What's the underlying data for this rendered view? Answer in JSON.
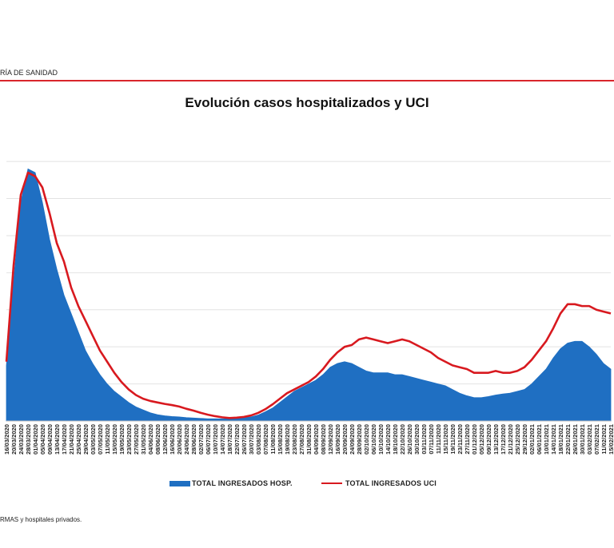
{
  "header": {
    "source_text": "RÍA DE SANIDAD",
    "rule_color": "#d9252b"
  },
  "footnote": "RMAS y hospitales privados.",
  "colors": {
    "hosp": "#1f6fc2",
    "uci": "#d8191f",
    "grid": "#e2e2e2"
  },
  "chart_data": {
    "type": "area",
    "title": "Evolución casos hospitalizados y UCI",
    "xlabel": "",
    "ylabel": "",
    "grid": true,
    "legend_position": "bottom",
    "x_tick_labels": [
      "16/03/2020",
      "20/03/2020",
      "24/03/2020",
      "28/03/2020",
      "01/04/2020",
      "05/04/2020",
      "09/04/2020",
      "13/04/2020",
      "17/04/2020",
      "21/04/2020",
      "25/04/2020",
      "29/04/2020",
      "03/05/2020",
      "07/05/2020",
      "11/05/2020",
      "15/05/2020",
      "19/05/2020",
      "23/05/2020",
      "27/05/2020",
      "31/05/2020",
      "04/06/2020",
      "08/06/2020",
      "12/06/2020",
      "16/06/2020",
      "20/06/2020",
      "24/06/2020",
      "28/06/2020",
      "02/07/2020",
      "06/07/2020",
      "10/07/2020",
      "14/07/2020",
      "18/07/2020",
      "22/07/2020",
      "26/07/2020",
      "30/07/2020",
      "03/08/2020",
      "07/08/2020",
      "11/08/2020",
      "15/08/2020",
      "19/08/2020",
      "23/08/2020",
      "27/08/2020",
      "31/08/2020",
      "04/09/2020",
      "08/09/2020",
      "12/09/2020",
      "16/09/2020",
      "20/09/2020",
      "24/09/2020",
      "28/09/2020",
      "02/10/2020",
      "06/10/2020",
      "10/10/2020",
      "14/10/2020",
      "18/10/2020",
      "22/10/2020",
      "26/10/2020",
      "30/10/2020",
      "03/11/2020",
      "07/11/2020",
      "11/11/2020",
      "15/11/2020",
      "19/11/2020",
      "23/11/2020",
      "27/11/2020",
      "01/12/2020",
      "05/12/2020",
      "09/12/2020",
      "13/12/2020",
      "17/12/2020",
      "21/12/2020",
      "25/12/2020",
      "29/12/2020",
      "02/01/2021",
      "06/01/2021",
      "10/01/2021",
      "14/01/2021",
      "18/01/2021",
      "22/01/2021",
      "26/01/2021",
      "30/01/2021",
      "03/02/2021",
      "07/02/2021",
      "11/02/2021",
      "15/02/2021"
    ],
    "y_range": [
      0,
      78
    ],
    "series": [
      {
        "name": "TOTAL INGRESADOS HOSP.",
        "kind": "area",
        "points": [
          [
            "2020-03-16",
            15
          ],
          [
            "2020-03-20",
            38
          ],
          [
            "2020-03-24",
            59
          ],
          [
            "2020-03-28",
            68
          ],
          [
            "2020-04-01",
            67
          ],
          [
            "2020-04-05",
            59
          ],
          [
            "2020-04-09",
            49
          ],
          [
            "2020-04-13",
            41
          ],
          [
            "2020-04-17",
            34
          ],
          [
            "2020-04-21",
            29
          ],
          [
            "2020-04-25",
            24
          ],
          [
            "2020-04-29",
            19
          ],
          [
            "2020-05-03",
            15.5
          ],
          [
            "2020-05-07",
            12.5
          ],
          [
            "2020-05-11",
            10
          ],
          [
            "2020-05-15",
            8
          ],
          [
            "2020-05-19",
            6.5
          ],
          [
            "2020-05-23",
            5
          ],
          [
            "2020-05-27",
            3.8
          ],
          [
            "2020-05-31",
            3
          ],
          [
            "2020-06-04",
            2.2
          ],
          [
            "2020-06-08",
            1.7
          ],
          [
            "2020-06-12",
            1.4
          ],
          [
            "2020-06-16",
            1.2
          ],
          [
            "2020-06-20",
            1.1
          ],
          [
            "2020-06-24",
            0.9
          ],
          [
            "2020-06-28",
            0.8
          ],
          [
            "2020-07-02",
            0.7
          ],
          [
            "2020-07-06",
            0.6
          ],
          [
            "2020-07-10",
            0.6
          ],
          [
            "2020-07-14",
            0.6
          ],
          [
            "2020-07-18",
            0.6
          ],
          [
            "2020-07-22",
            0.7
          ],
          [
            "2020-07-26",
            0.9
          ],
          [
            "2020-07-30",
            1.1
          ],
          [
            "2020-08-03",
            1.6
          ],
          [
            "2020-08-07",
            2.5
          ],
          [
            "2020-08-11",
            3.5
          ],
          [
            "2020-08-15",
            5
          ],
          [
            "2020-08-19",
            6.5
          ],
          [
            "2020-08-23",
            8
          ],
          [
            "2020-08-27",
            9
          ],
          [
            "2020-08-31",
            10
          ],
          [
            "2020-09-04",
            11
          ],
          [
            "2020-09-08",
            12.5
          ],
          [
            "2020-09-12",
            14.5
          ],
          [
            "2020-09-16",
            15.5
          ],
          [
            "2020-09-20",
            16
          ],
          [
            "2020-09-24",
            15.5
          ],
          [
            "2020-09-28",
            14.5
          ],
          [
            "2020-10-02",
            13.5
          ],
          [
            "2020-10-06",
            13
          ],
          [
            "2020-10-10",
            13
          ],
          [
            "2020-10-14",
            13
          ],
          [
            "2020-10-18",
            12.5
          ],
          [
            "2020-10-22",
            12.5
          ],
          [
            "2020-10-26",
            12
          ],
          [
            "2020-10-30",
            11.5
          ],
          [
            "2020-11-03",
            11
          ],
          [
            "2020-11-07",
            10.5
          ],
          [
            "2020-11-11",
            10
          ],
          [
            "2020-11-15",
            9.5
          ],
          [
            "2020-11-19",
            8.5
          ],
          [
            "2020-11-23",
            7.5
          ],
          [
            "2020-11-27",
            6.8
          ],
          [
            "2020-12-01",
            6.3
          ],
          [
            "2020-12-05",
            6.3
          ],
          [
            "2020-12-09",
            6.6
          ],
          [
            "2020-12-13",
            7
          ],
          [
            "2020-12-17",
            7.3
          ],
          [
            "2020-12-21",
            7.5
          ],
          [
            "2020-12-25",
            8
          ],
          [
            "2020-12-29",
            8.5
          ],
          [
            "2021-01-02",
            10
          ],
          [
            "2021-01-06",
            12
          ],
          [
            "2021-01-10",
            14
          ],
          [
            "2021-01-14",
            17
          ],
          [
            "2021-01-18",
            19.5
          ],
          [
            "2021-01-22",
            21
          ],
          [
            "2021-01-26",
            21.5
          ],
          [
            "2021-01-30",
            21.5
          ],
          [
            "2021-02-03",
            20
          ],
          [
            "2021-02-07",
            18
          ],
          [
            "2021-02-11",
            15.5
          ],
          [
            "2021-02-15",
            14
          ]
        ]
      },
      {
        "name": "TOTAL INGRESADOS UCI",
        "kind": "line",
        "points": [
          [
            "2020-03-16",
            16
          ],
          [
            "2020-03-20",
            42
          ],
          [
            "2020-03-24",
            61
          ],
          [
            "2020-03-28",
            67
          ],
          [
            "2020-04-01",
            66
          ],
          [
            "2020-04-05",
            63
          ],
          [
            "2020-04-09",
            56
          ],
          [
            "2020-04-13",
            48
          ],
          [
            "2020-04-17",
            43
          ],
          [
            "2020-04-21",
            36
          ],
          [
            "2020-04-25",
            31
          ],
          [
            "2020-04-29",
            27
          ],
          [
            "2020-05-03",
            23
          ],
          [
            "2020-05-07",
            19
          ],
          [
            "2020-05-11",
            16
          ],
          [
            "2020-05-15",
            13
          ],
          [
            "2020-05-19",
            10.5
          ],
          [
            "2020-05-23",
            8.5
          ],
          [
            "2020-05-27",
            7
          ],
          [
            "2020-05-31",
            6
          ],
          [
            "2020-06-04",
            5.4
          ],
          [
            "2020-06-08",
            5
          ],
          [
            "2020-06-12",
            4.6
          ],
          [
            "2020-06-16",
            4.3
          ],
          [
            "2020-06-20",
            3.9
          ],
          [
            "2020-06-24",
            3.3
          ],
          [
            "2020-06-28",
            2.8
          ],
          [
            "2020-07-02",
            2.2
          ],
          [
            "2020-07-06",
            1.7
          ],
          [
            "2020-07-10",
            1.3
          ],
          [
            "2020-07-14",
            1
          ],
          [
            "2020-07-18",
            0.8
          ],
          [
            "2020-07-22",
            0.9
          ],
          [
            "2020-07-26",
            1.1
          ],
          [
            "2020-07-30",
            1.5
          ],
          [
            "2020-08-03",
            2.2
          ],
          [
            "2020-08-07",
            3.2
          ],
          [
            "2020-08-11",
            4.5
          ],
          [
            "2020-08-15",
            6
          ],
          [
            "2020-08-19",
            7.5
          ],
          [
            "2020-08-23",
            8.5
          ],
          [
            "2020-08-27",
            9.5
          ],
          [
            "2020-08-31",
            10.5
          ],
          [
            "2020-09-04",
            12
          ],
          [
            "2020-09-08",
            14
          ],
          [
            "2020-09-12",
            16.5
          ],
          [
            "2020-09-16",
            18.5
          ],
          [
            "2020-09-20",
            20
          ],
          [
            "2020-09-24",
            20.5
          ],
          [
            "2020-09-28",
            22
          ],
          [
            "2020-10-02",
            22.5
          ],
          [
            "2020-10-06",
            22
          ],
          [
            "2020-10-10",
            21.5
          ],
          [
            "2020-10-14",
            21
          ],
          [
            "2020-10-18",
            21.5
          ],
          [
            "2020-10-22",
            22
          ],
          [
            "2020-10-26",
            21.5
          ],
          [
            "2020-10-30",
            20.5
          ],
          [
            "2020-11-03",
            19.5
          ],
          [
            "2020-11-07",
            18.5
          ],
          [
            "2020-11-11",
            17
          ],
          [
            "2020-11-15",
            16
          ],
          [
            "2020-11-19",
            15
          ],
          [
            "2020-11-23",
            14.5
          ],
          [
            "2020-11-27",
            14
          ],
          [
            "2020-12-01",
            13
          ],
          [
            "2020-12-05",
            13
          ],
          [
            "2020-12-09",
            13
          ],
          [
            "2020-12-13",
            13.5
          ],
          [
            "2020-12-17",
            13
          ],
          [
            "2020-12-21",
            13
          ],
          [
            "2020-12-25",
            13.5
          ],
          [
            "2020-12-29",
            14.5
          ],
          [
            "2021-01-02",
            16.5
          ],
          [
            "2021-01-06",
            19
          ],
          [
            "2021-01-10",
            21.5
          ],
          [
            "2021-01-14",
            25
          ],
          [
            "2021-01-18",
            29
          ],
          [
            "2021-01-22",
            31.5
          ],
          [
            "2021-01-26",
            31.5
          ],
          [
            "2021-01-30",
            31
          ],
          [
            "2021-02-03",
            31
          ],
          [
            "2021-02-07",
            30
          ],
          [
            "2021-02-11",
            29.5
          ],
          [
            "2021-02-15",
            29
          ]
        ]
      }
    ]
  }
}
